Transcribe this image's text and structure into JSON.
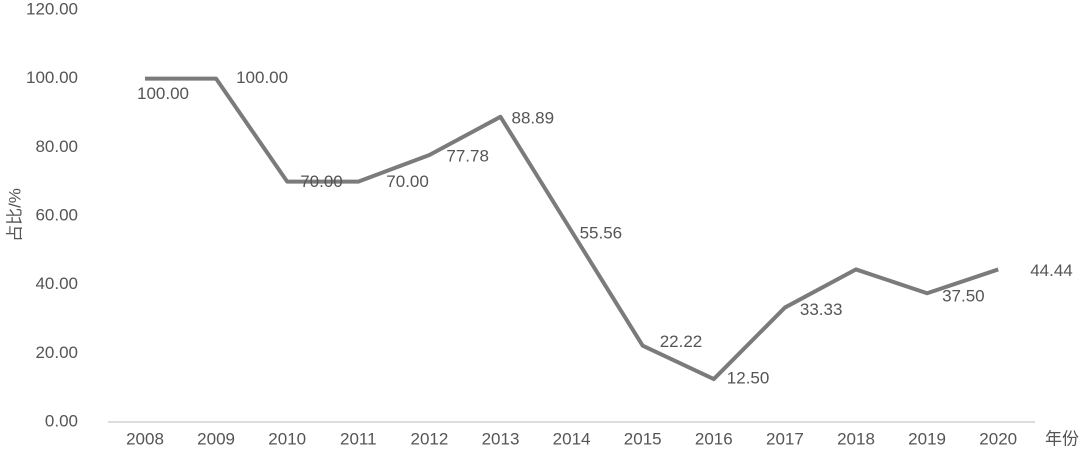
{
  "chart_data": {
    "type": "line",
    "y_label": "占比/%",
    "x_label": "年份",
    "categories": [
      "2008",
      "2009",
      "2010",
      "2011",
      "2012",
      "2013",
      "2014",
      "2015",
      "2016",
      "2017",
      "2018",
      "2019",
      "2020"
    ],
    "values": [
      100,
      100,
      70,
      70,
      77.78,
      88.89,
      55.56,
      22.22,
      12.5,
      33.33,
      44.44,
      37.5,
      44.44
    ],
    "value_labels": [
      "100.00",
      "100.00",
      "70.00",
      "70.00",
      "77.78",
      "88.89",
      "55.56",
      "22.22",
      "12.50",
      "33.33",
      null,
      "37.50",
      "44.44"
    ],
    "color": "#7b7b7b",
    "ylim": [
      0,
      120
    ],
    "yticks": [
      {
        "value": 0,
        "label": "0.00"
      },
      {
        "value": 20,
        "label": "20.00"
      },
      {
        "value": 40,
        "label": "40.00"
      },
      {
        "value": 60,
        "label": "60.00"
      },
      {
        "value": 80,
        "label": "80.00"
      },
      {
        "value": 100,
        "label": "100.00"
      },
      {
        "value": 120,
        "label": "120.00"
      }
    ],
    "grid": false
  }
}
